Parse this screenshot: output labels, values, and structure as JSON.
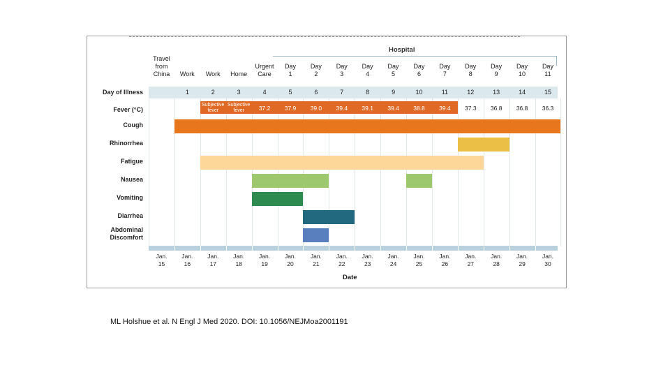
{
  "phases": [
    "Travel\nfrom\nChina",
    "Work",
    "Work",
    "Home",
    "Urgent\nCare"
  ],
  "hospital_label": "Hospital",
  "hospital_days": [
    "Day\n1",
    "Day\n2",
    "Day\n3",
    "Day\n4",
    "Day\n5",
    "Day\n6",
    "Day\n7",
    "Day\n8",
    "Day\n9",
    "Day\n10",
    "Day\n11"
  ],
  "row_labels": {
    "day_of_illness": "Day of Illness",
    "fever": "Fever (°C)",
    "symptoms": [
      "Cough",
      "Rhinorrhea",
      "Fatigue",
      "Nausea",
      "Vomiting",
      "Diarrhea",
      "Abdominal\nDiscomfort"
    ]
  },
  "illness_days": [
    "1",
    "2",
    "3",
    "4",
    "5",
    "6",
    "7",
    "8",
    "9",
    "10",
    "11",
    "12",
    "13",
    "14",
    "15"
  ],
  "fever_values": [
    "Subjective\nfever",
    "Subjective\nfever",
    "37.2",
    "37.9",
    "39.0",
    "39.4",
    "39.1",
    "39.4",
    "38.8",
    "39.4",
    "37.3",
    "36.8",
    "36.8",
    "36.3"
  ],
  "dates": [
    "Jan.\n15",
    "Jan.\n16",
    "Jan.\n17",
    "Jan.\n18",
    "Jan.\n19",
    "Jan.\n20",
    "Jan.\n21",
    "Jan.\n22",
    "Jan.\n23",
    "Jan.\n24",
    "Jan.\n25",
    "Jan.\n26",
    "Jan.\n27",
    "Jan.\n28",
    "Jan.\n29",
    "Jan.\n30"
  ],
  "x_axis_label": "Date",
  "symptom_bars": [
    {
      "symptom": "Cough",
      "start": "Jan. 16",
      "end": "Jan. 30",
      "color": "#e8761c"
    },
    {
      "symptom": "Rhinorrhea",
      "start": "Jan. 27",
      "end": "Jan. 28",
      "color": "#ebbf45"
    },
    {
      "symptom": "Fatigue",
      "start": "Jan. 17",
      "end": "Jan. 27",
      "color": "#fdd79a"
    },
    {
      "symptom": "Nausea",
      "start": "Jan. 19",
      "end": "Jan. 21",
      "color": "#9dc86e"
    },
    {
      "symptom": "Nausea",
      "start": "Jan. 25",
      "end": "Jan. 25",
      "color": "#9dc86e"
    },
    {
      "symptom": "Vomiting",
      "start": "Jan. 19",
      "end": "Jan. 20",
      "color": "#2e8b50"
    },
    {
      "symptom": "Diarrhea",
      "start": "Jan. 21",
      "end": "Jan. 22",
      "color": "#22687e"
    },
    {
      "symptom": "Abdominal Discomfort",
      "start": "Jan. 21",
      "end": "Jan. 21",
      "color": "#5a7fbf"
    }
  ],
  "fever_bar": {
    "start": "Jan. 17",
    "end": "Jan. 26",
    "color": "#e06a25"
  },
  "citation": "ML Holshue et al. N Engl J Med 2020. DOI: 10.1056/NEJMoa2001191"
}
